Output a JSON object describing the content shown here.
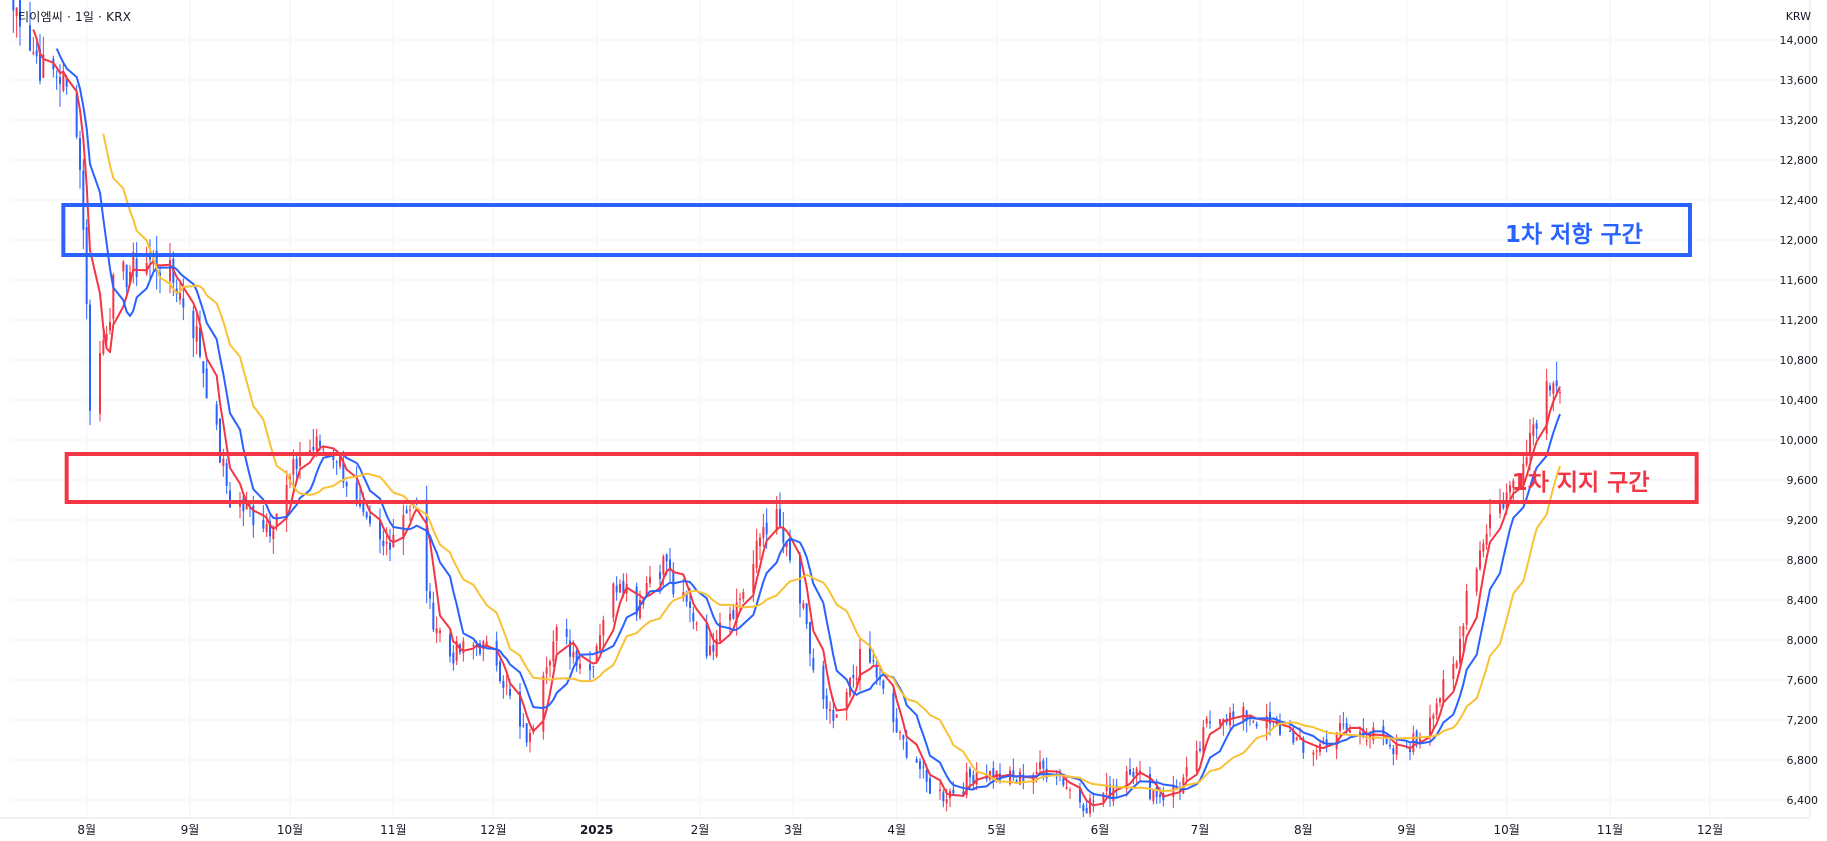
{
  "header": {
    "symbol_text": "티이엠씨 · 1일 · KRX",
    "currency": "KRW"
  },
  "colors": {
    "up": "#f23645",
    "down": "#2962ff",
    "ma_short": "#f23645",
    "ma_mid": "#2962ff",
    "ma_long": "#f9c235",
    "resistance_zone": "#2962ff",
    "support_zone": "#f23645",
    "grid": "#f0f3fa",
    "axis_text": "#131722"
  },
  "chart_data": {
    "type": "candlestick",
    "title": "",
    "xlabel": "",
    "ylabel": "",
    "ylim": [
      6400,
      14400
    ],
    "y_ticks": [
      6400,
      6800,
      7200,
      7600,
      8000,
      8400,
      8800,
      9200,
      9600,
      10000,
      10400,
      10800,
      11200,
      11600,
      12000,
      12400,
      12800,
      13200,
      13600,
      14000
    ],
    "y_tick_labels": [
      "6,400",
      "6,800",
      "7,200",
      "7,600",
      "8,000",
      "8,400",
      "8,800",
      "9,200",
      "9,600",
      "10,000",
      "10,400",
      "10,800",
      "11,200",
      "11,600",
      "12,000",
      "12,400",
      "12,800",
      "13,200",
      "13,600",
      "14,000"
    ],
    "x_range": [
      "2024-07-09",
      "2025-12-31"
    ],
    "x_ticks": [
      {
        "date": "2024-08-01",
        "label": "8월"
      },
      {
        "date": "2024-09-01",
        "label": "9월"
      },
      {
        "date": "2024-10-01",
        "label": "10월"
      },
      {
        "date": "2024-11-01",
        "label": "11월"
      },
      {
        "date": "2024-12-01",
        "label": "12월"
      },
      {
        "date": "2025-01-01",
        "label": "2025"
      },
      {
        "date": "2025-02-01",
        "label": "2월"
      },
      {
        "date": "2025-03-01",
        "label": "3월"
      },
      {
        "date": "2025-04-01",
        "label": "4월"
      },
      {
        "date": "2025-05-01",
        "label": "5월"
      },
      {
        "date": "2025-06-01",
        "label": "6월"
      },
      {
        "date": "2025-07-01",
        "label": "7월"
      },
      {
        "date": "2025-08-01",
        "label": "8월"
      },
      {
        "date": "2025-09-01",
        "label": "9월"
      },
      {
        "date": "2025-10-01",
        "label": "10월"
      },
      {
        "date": "2025-11-01",
        "label": "11월"
      },
      {
        "date": "2025-12-01",
        "label": "12월"
      }
    ],
    "close_anchors": [
      [
        "2024-07-12",
        14300
      ],
      [
        "2024-07-16",
        13900
      ],
      [
        "2024-07-19",
        13700
      ],
      [
        "2024-07-24",
        13650
      ],
      [
        "2024-07-29",
        13200
      ],
      [
        "2024-07-31",
        12200
      ],
      [
        "2024-08-02",
        10400
      ],
      [
        "2024-08-06",
        11000
      ],
      [
        "2024-08-09",
        11500
      ],
      [
        "2024-08-14",
        11700
      ],
      [
        "2024-08-19",
        11800
      ],
      [
        "2024-08-23",
        11750
      ],
      [
        "2024-08-28",
        11550
      ],
      [
        "2024-09-03",
        11050
      ],
      [
        "2024-09-06",
        10550
      ],
      [
        "2024-09-10",
        9850
      ],
      [
        "2024-09-13",
        9400
      ],
      [
        "2024-09-20",
        9250
      ],
      [
        "2024-09-25",
        9150
      ],
      [
        "2024-09-30",
        9500
      ],
      [
        "2024-10-04",
        9850
      ],
      [
        "2024-10-10",
        9950
      ],
      [
        "2024-10-15",
        9850
      ],
      [
        "2024-10-18",
        9600
      ],
      [
        "2024-10-23",
        9150
      ],
      [
        "2024-10-29",
        8900
      ],
      [
        "2024-11-01",
        9100
      ],
      [
        "2024-11-05",
        9350
      ],
      [
        "2024-11-08",
        9300
      ],
      [
        "2024-11-12",
        8300
      ],
      [
        "2024-11-18",
        7850
      ],
      [
        "2024-11-22",
        7900
      ],
      [
        "2024-11-27",
        7950
      ],
      [
        "2024-12-02",
        7800
      ],
      [
        "2024-12-05",
        7500
      ],
      [
        "2024-12-09",
        7100
      ],
      [
        "2024-12-12",
        7000
      ],
      [
        "2024-12-16",
        7750
      ],
      [
        "2024-12-20",
        8050
      ],
      [
        "2024-12-26",
        7850
      ],
      [
        "2024-12-30",
        7700
      ],
      [
        "2025-01-03",
        8250
      ],
      [
        "2025-01-08",
        8650
      ],
      [
        "2025-01-13",
        8350
      ],
      [
        "2025-01-17",
        8650
      ],
      [
        "2025-01-22",
        8800
      ],
      [
        "2025-01-24",
        8500
      ],
      [
        "2025-01-31",
        8200
      ],
      [
        "2025-02-04",
        7850
      ],
      [
        "2025-02-07",
        8250
      ],
      [
        "2025-02-12",
        8350
      ],
      [
        "2025-02-17",
        8750
      ],
      [
        "2025-02-20",
        9150
      ],
      [
        "2025-02-24",
        9200
      ],
      [
        "2025-02-28",
        8750
      ],
      [
        "2025-03-04",
        8250
      ],
      [
        "2025-03-07",
        7700
      ],
      [
        "2025-03-11",
        7250
      ],
      [
        "2025-03-14",
        7150
      ],
      [
        "2025-03-18",
        7550
      ],
      [
        "2025-03-21",
        7800
      ],
      [
        "2025-03-25",
        7750
      ],
      [
        "2025-03-28",
        7450
      ],
      [
        "2025-04-02",
        7000
      ],
      [
        "2025-04-07",
        6800
      ],
      [
        "2025-04-10",
        6550
      ],
      [
        "2025-04-15",
        6450
      ],
      [
        "2025-04-21",
        6550
      ],
      [
        "2025-04-25",
        6700
      ],
      [
        "2025-04-30",
        6650
      ],
      [
        "2025-05-07",
        6600
      ],
      [
        "2025-05-13",
        6700
      ],
      [
        "2025-05-19",
        6700
      ],
      [
        "2025-05-23",
        6500
      ],
      [
        "2025-05-28",
        6350
      ],
      [
        "2025-06-04",
        6500
      ],
      [
        "2025-06-10",
        6750
      ],
      [
        "2025-06-16",
        6500
      ],
      [
        "2025-06-20",
        6450
      ],
      [
        "2025-06-25",
        6550
      ],
      [
        "2025-06-30",
        6800
      ],
      [
        "2025-07-03",
        7150
      ],
      [
        "2025-07-07",
        7300
      ],
      [
        "2025-07-11",
        7200
      ],
      [
        "2025-07-16",
        7250
      ],
      [
        "2025-07-21",
        7150
      ],
      [
        "2025-07-25",
        7100
      ],
      [
        "2025-07-29",
        7050
      ],
      [
        "2025-08-01",
        6850
      ],
      [
        "2025-08-06",
        6950
      ],
      [
        "2025-08-11",
        7100
      ],
      [
        "2025-08-14",
        7100
      ],
      [
        "2025-08-19",
        7050
      ],
      [
        "2025-08-22",
        7150
      ],
      [
        "2025-08-27",
        6850
      ],
      [
        "2025-09-01",
        6950
      ],
      [
        "2025-09-04",
        7000
      ],
      [
        "2025-09-09",
        7350
      ],
      [
        "2025-09-12",
        7500
      ],
      [
        "2025-09-16",
        7750
      ],
      [
        "2025-09-19",
        8500
      ],
      [
        "2025-09-23",
        8900
      ],
      [
        "2025-09-26",
        9250
      ],
      [
        "2025-09-30",
        9400
      ],
      [
        "2025-10-02",
        9500
      ],
      [
        "2025-10-13",
        10550
      ],
      [
        "2025-10-15",
        10700
      ],
      [
        "2025-10-17",
        10500
      ]
    ],
    "moving_averages": [
      {
        "period": 5,
        "color_key": "ma_short"
      },
      {
        "period": 10,
        "color_key": "ma_mid"
      },
      {
        "period": 20,
        "color_key": "ma_long"
      }
    ],
    "zones": [
      {
        "name": "resistance",
        "label": "1차 저항 구간",
        "y_low": 11850,
        "y_high": 12350,
        "x_start": "2024-07-25",
        "x_end": "2025-11-25",
        "color_key": "resistance_zone"
      },
      {
        "name": "support",
        "label": "1차 지지 구간",
        "y_low": 9380,
        "y_high": 9860,
        "x_start": "2024-07-26",
        "x_end": "2025-11-27",
        "color_key": "support_zone"
      }
    ]
  }
}
